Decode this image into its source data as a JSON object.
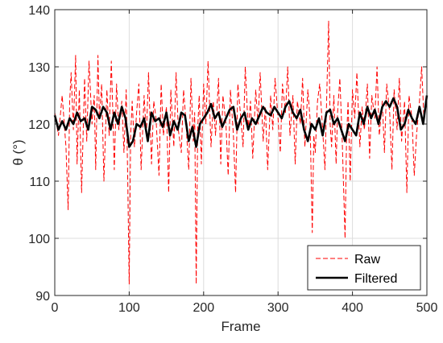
{
  "chart_data": {
    "type": "line",
    "title": "",
    "xlabel": "Frame",
    "ylabel": "θ (°)",
    "xlim": [
      0,
      500
    ],
    "ylim": [
      90,
      140
    ],
    "xticks": [
      0,
      100,
      200,
      300,
      400,
      500
    ],
    "yticks": [
      90,
      100,
      110,
      120,
      130,
      140
    ],
    "grid": true,
    "legend_position": "bottom-right",
    "series": [
      {
        "name": "Raw",
        "color": "#ff0000",
        "style": "dashed",
        "x": [
          0,
          5,
          10,
          15,
          18,
          20,
          22,
          25,
          28,
          30,
          33,
          36,
          40,
          43,
          46,
          50,
          53,
          55,
          58,
          60,
          63,
          66,
          70,
          73,
          76,
          78,
          80,
          83,
          86,
          90,
          93,
          96,
          98,
          100,
          102,
          104,
          107,
          110,
          113,
          116,
          120,
          123,
          126,
          130,
          133,
          136,
          140,
          143,
          146,
          150,
          153,
          156,
          160,
          163,
          166,
          170,
          173,
          176,
          180,
          183,
          186,
          188,
          190,
          192,
          194,
          197,
          200,
          203,
          206,
          210,
          213,
          216,
          220,
          223,
          226,
          230,
          233,
          236,
          240,
          243,
          246,
          250,
          253,
          256,
          260,
          263,
          266,
          270,
          273,
          276,
          280,
          283,
          286,
          290,
          293,
          296,
          300,
          303,
          306,
          310,
          313,
          316,
          320,
          323,
          326,
          330,
          333,
          336,
          340,
          343,
          346,
          348,
          350,
          353,
          356,
          360,
          363,
          366,
          368,
          370,
          372,
          375,
          378,
          380,
          383,
          386,
          390,
          392,
          394,
          397,
          400,
          403,
          406,
          410,
          413,
          416,
          420,
          423,
          426,
          430,
          433,
          436,
          440,
          443,
          446,
          450,
          453,
          456,
          460,
          463,
          466,
          470,
          473,
          476,
          480,
          483,
          486,
          490,
          493,
          496,
          500
        ],
        "y": [
          122,
          118,
          125,
          116,
          105,
          124,
          129,
          119,
          132,
          113,
          126,
          108,
          128,
          117,
          131,
          120,
          125,
          112,
          132,
          121,
          127,
          110,
          126,
          118,
          131,
          122,
          112,
          127,
          119,
          124,
          115,
          126,
          110,
          92,
          118,
          124,
          116,
          122,
          127,
          112,
          125,
          118,
          129,
          113,
          124,
          121,
          111,
          127,
          118,
          123,
          108,
          126,
          116,
          129,
          119,
          115,
          126,
          121,
          112,
          128,
          117,
          122,
          92,
          119,
          125,
          113,
          127,
          120,
          131,
          116,
          124,
          118,
          128,
          113,
          125,
          120,
          111,
          126,
          118,
          108,
          127,
          121,
          116,
          130,
          119,
          124,
          114,
          126,
          120,
          129,
          117,
          123,
          112,
          125,
          119,
          128,
          121,
          115,
          127,
          122,
          130,
          118,
          125,
          113,
          124,
          120,
          128,
          116,
          126,
          121,
          101,
          118,
          115,
          124,
          127,
          119,
          112,
          128,
          138,
          120,
          116,
          125,
          113,
          122,
          128,
          118,
          100,
          117,
          124,
          110,
          126,
          121,
          129,
          116,
          123,
          119,
          127,
          114,
          125,
          121,
          130,
          118,
          124,
          115,
          127,
          122,
          112,
          126,
          119,
          128,
          117,
          124,
          108,
          125,
          121,
          111,
          118,
          124,
          130,
          121,
          125
        ]
      },
      {
        "name": "Filtered",
        "color": "#000000",
        "style": "solid",
        "x": [
          0,
          5,
          10,
          15,
          20,
          25,
          30,
          35,
          40,
          45,
          50,
          55,
          60,
          65,
          70,
          75,
          80,
          85,
          90,
          95,
          100,
          105,
          110,
          115,
          120,
          125,
          130,
          135,
          140,
          145,
          150,
          155,
          160,
          165,
          170,
          175,
          180,
          185,
          190,
          195,
          200,
          205,
          210,
          215,
          220,
          225,
          230,
          235,
          240,
          245,
          250,
          255,
          260,
          265,
          270,
          275,
          280,
          285,
          290,
          295,
          300,
          305,
          310,
          315,
          320,
          325,
          330,
          335,
          340,
          345,
          350,
          355,
          360,
          365,
          370,
          375,
          380,
          385,
          390,
          395,
          400,
          405,
          410,
          415,
          420,
          425,
          430,
          435,
          440,
          445,
          450,
          455,
          460,
          465,
          470,
          475,
          480,
          485,
          490,
          495,
          500
        ],
        "y": [
          121.5,
          119,
          120.5,
          119,
          121,
          120,
          122,
          120.5,
          121,
          119,
          123,
          122.5,
          121,
          123,
          122,
          119,
          122,
          120,
          123,
          121,
          116,
          117,
          120,
          119.5,
          121,
          117,
          122,
          120.5,
          121,
          119.5,
          122,
          118,
          120.5,
          119,
          122,
          121.5,
          117,
          119.5,
          116,
          120,
          121,
          122,
          123.5,
          121,
          122,
          119.5,
          121,
          122.5,
          123,
          119,
          121,
          122,
          119,
          121,
          120,
          121.5,
          123,
          122,
          121.5,
          123,
          122,
          121,
          123,
          124,
          122,
          121,
          122.5,
          119,
          117,
          120,
          119,
          121,
          118,
          122,
          122.5,
          120,
          121,
          119,
          117,
          120,
          119,
          118,
          122,
          120,
          123,
          121,
          122.5,
          120,
          123,
          124,
          123,
          124.5,
          123,
          119,
          120,
          122.5,
          121,
          120,
          123,
          120,
          125
        ]
      }
    ]
  }
}
